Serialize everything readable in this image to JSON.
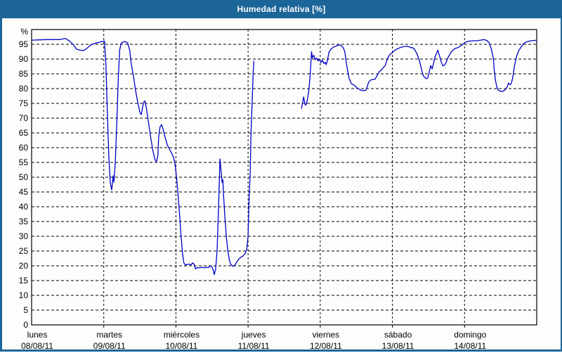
{
  "window": {
    "title": "Humedad relativa [%]",
    "title_bar_color": "#1c6598",
    "border_color": "#1c6598",
    "background_color": "#fdfefb"
  },
  "chart_data": {
    "type": "line",
    "title": "Humedad relativa [%]",
    "xlabel": "",
    "ylabel": "%",
    "xlim_days": [
      0,
      7
    ],
    "ylim": [
      0,
      100
    ],
    "grid": "dashed-horizontal-and-vertical",
    "legend_position": "none",
    "line_color": "#0000c8",
    "grid_color": "#000000",
    "yticks": [
      0,
      5,
      10,
      15,
      20,
      25,
      30,
      35,
      40,
      45,
      50,
      55,
      60,
      65,
      70,
      75,
      80,
      85,
      90,
      95
    ],
    "x_day_labels": [
      {
        "day": "lunes",
        "date": "08/08/11"
      },
      {
        "day": "martes",
        "date": "09/08/11"
      },
      {
        "day": "miércoles",
        "date": "10/08/11"
      },
      {
        "day": "jueves",
        "date": "11/08/11"
      },
      {
        "day": "viernes",
        "date": "12/08/11"
      },
      {
        "day": "sábado",
        "date": "13/08/11"
      },
      {
        "day": "domingo",
        "date": "14/08/11"
      }
    ],
    "series": [
      {
        "name": "Humedad relativa",
        "unit": "%",
        "segments": [
          [
            [
              0.0,
              96.4
            ],
            [
              0.1,
              96.5
            ],
            [
              0.2,
              96.6
            ],
            [
              0.29,
              96.6
            ],
            [
              0.39,
              96.6
            ],
            [
              0.47,
              97.0
            ],
            [
              0.53,
              96.0
            ],
            [
              0.58,
              94.8
            ],
            [
              0.62,
              93.4
            ],
            [
              0.67,
              93.0
            ],
            [
              0.72,
              92.9
            ],
            [
              0.76,
              93.5
            ],
            [
              0.81,
              94.6
            ],
            [
              0.86,
              95.2
            ],
            [
              0.92,
              95.6
            ],
            [
              0.97,
              95.9
            ],
            [
              1.01,
              96.1
            ],
            [
              1.03,
              88.0
            ],
            [
              1.05,
              72.0
            ],
            [
              1.07,
              57.0
            ],
            [
              1.09,
              48.0
            ],
            [
              1.11,
              45.7
            ],
            [
              1.13,
              50.5
            ],
            [
              1.14,
              48.3
            ],
            [
              1.16,
              55.0
            ],
            [
              1.18,
              68.0
            ],
            [
              1.2,
              83.0
            ],
            [
              1.22,
              93.0
            ],
            [
              1.24,
              95.3
            ],
            [
              1.27,
              95.8
            ],
            [
              1.3,
              95.9
            ],
            [
              1.33,
              95.5
            ],
            [
              1.36,
              93.0
            ],
            [
              1.38,
              88.5
            ],
            [
              1.41,
              84.5
            ],
            [
              1.44,
              79.5
            ],
            [
              1.47,
              75.5
            ],
            [
              1.5,
              72.0
            ],
            [
              1.52,
              71.2
            ],
            [
              1.53,
              72.5
            ],
            [
              1.55,
              75.3
            ],
            [
              1.57,
              75.8
            ],
            [
              1.59,
              73.5
            ],
            [
              1.62,
              68.5
            ],
            [
              1.65,
              63.5
            ],
            [
              1.68,
              59.0
            ],
            [
              1.71,
              56.0
            ],
            [
              1.73,
              55.2
            ],
            [
              1.75,
              57.5
            ],
            [
              1.76,
              63.5
            ],
            [
              1.78,
              67.0
            ],
            [
              1.8,
              67.8
            ],
            [
              1.82,
              66.5
            ],
            [
              1.85,
              63.5
            ],
            [
              1.88,
              61.0
            ],
            [
              1.91,
              59.5
            ],
            [
              1.94,
              58.2
            ],
            [
              1.97,
              56.5
            ],
            [
              1.99,
              54.0
            ],
            [
              2.01,
              49.5
            ],
            [
              2.03,
              44.0
            ],
            [
              2.05,
              37.5
            ],
            [
              2.07,
              30.5
            ],
            [
              2.09,
              24.5
            ],
            [
              2.11,
              21.0
            ],
            [
              2.13,
              20.3
            ],
            [
              2.15,
              20.4
            ],
            [
              2.18,
              20.6
            ],
            [
              2.21,
              20.3
            ],
            [
              2.23,
              21.0
            ],
            [
              2.25,
              20.6
            ],
            [
              2.27,
              19.0
            ],
            [
              2.3,
              19.4
            ],
            [
              2.33,
              19.3
            ],
            [
              2.36,
              19.5
            ],
            [
              2.39,
              19.3
            ],
            [
              2.42,
              19.5
            ],
            [
              2.45,
              19.4
            ],
            [
              2.48,
              20.0
            ],
            [
              2.5,
              19.6
            ],
            [
              2.52,
              18.4
            ],
            [
              2.53,
              17.0
            ],
            [
              2.55,
              18.8
            ],
            [
              2.57,
              25.0
            ],
            [
              2.59,
              39.0
            ],
            [
              2.61,
              56.2
            ],
            [
              2.63,
              51.0
            ],
            [
              2.64,
              48.2
            ],
            [
              2.65,
              49.2
            ],
            [
              2.66,
              44.0
            ],
            [
              2.68,
              36.0
            ],
            [
              2.7,
              29.5
            ],
            [
              2.72,
              25.0
            ],
            [
              2.74,
              22.0
            ],
            [
              2.76,
              20.5
            ],
            [
              2.79,
              19.8
            ],
            [
              2.82,
              20.3
            ],
            [
              2.85,
              21.6
            ],
            [
              2.88,
              22.5
            ],
            [
              2.9,
              22.9
            ],
            [
              2.93,
              23.3
            ],
            [
              2.96,
              24.2
            ],
            [
              2.98,
              25.5
            ],
            [
              3.0,
              30.0
            ],
            [
              3.01,
              40.0
            ],
            [
              3.03,
              52.0
            ],
            [
              3.04,
              65.0
            ],
            [
              3.06,
              78.0
            ],
            [
              3.07,
              85.0
            ],
            [
              3.08,
              89.3
            ]
          ],
          [
            [
              3.74,
              73.3
            ],
            [
              3.76,
              75.8
            ],
            [
              3.77,
              77.2
            ],
            [
              3.79,
              74.6
            ],
            [
              3.8,
              74.4
            ],
            [
              3.82,
              76.0
            ],
            [
              3.84,
              79.0
            ],
            [
              3.86,
              84.5
            ],
            [
              3.88,
              92.5
            ],
            [
              3.89,
              90.4
            ],
            [
              3.91,
              91.3
            ],
            [
              3.93,
              89.8
            ],
            [
              3.95,
              90.3
            ],
            [
              3.97,
              89.4
            ],
            [
              3.99,
              89.9
            ],
            [
              4.01,
              88.8
            ],
            [
              4.03,
              89.6
            ],
            [
              4.05,
              88.5
            ],
            [
              4.07,
              88.9
            ],
            [
              4.08,
              88.1
            ],
            [
              4.1,
              89.4
            ],
            [
              4.12,
              92.3
            ],
            [
              4.15,
              93.4
            ],
            [
              4.18,
              94.0
            ],
            [
              4.22,
              94.4
            ],
            [
              4.26,
              94.8
            ],
            [
              4.29,
              94.6
            ],
            [
              4.32,
              93.8
            ],
            [
              4.34,
              92.5
            ],
            [
              4.36,
              89.0
            ],
            [
              4.38,
              86.0
            ],
            [
              4.4,
              83.5
            ],
            [
              4.43,
              81.7
            ],
            [
              4.46,
              81.3
            ],
            [
              4.48,
              81.0
            ],
            [
              4.51,
              80.2
            ],
            [
              4.54,
              79.8
            ],
            [
              4.57,
              79.4
            ],
            [
              4.6,
              79.3
            ],
            [
              4.63,
              79.4
            ],
            [
              4.65,
              80.5
            ],
            [
              4.67,
              82.2
            ],
            [
              4.7,
              82.9
            ],
            [
              4.73,
              83.1
            ],
            [
              4.76,
              83.2
            ],
            [
              4.79,
              84.5
            ],
            [
              4.82,
              85.8
            ],
            [
              4.85,
              86.3
            ],
            [
              4.87,
              87.0
            ],
            [
              4.9,
              87.8
            ],
            [
              4.92,
              89.3
            ],
            [
              4.94,
              90.6
            ],
            [
              4.97,
              91.7
            ],
            [
              5.0,
              92.2
            ],
            [
              5.03,
              92.9
            ],
            [
              5.07,
              93.5
            ],
            [
              5.11,
              93.9
            ],
            [
              5.15,
              94.2
            ],
            [
              5.19,
              94.3
            ],
            [
              5.23,
              94.2
            ],
            [
              5.26,
              93.8
            ],
            [
              5.28,
              93.9
            ],
            [
              5.31,
              93.2
            ],
            [
              5.34,
              91.8
            ],
            [
              5.37,
              89.8
            ],
            [
              5.39,
              88.0
            ],
            [
              5.41,
              85.8
            ],
            [
              5.43,
              84.3
            ],
            [
              5.45,
              83.8
            ],
            [
              5.47,
              83.3
            ],
            [
              5.49,
              83.6
            ],
            [
              5.51,
              85.5
            ],
            [
              5.53,
              87.8
            ],
            [
              5.55,
              86.7
            ],
            [
              5.57,
              88.5
            ],
            [
              5.59,
              90.7
            ],
            [
              5.61,
              91.8
            ],
            [
              5.63,
              93.0
            ],
            [
              5.64,
              92.2
            ],
            [
              5.66,
              90.5
            ],
            [
              5.68,
              88.8
            ],
            [
              5.7,
              87.7
            ],
            [
              5.72,
              87.9
            ],
            [
              5.74,
              88.6
            ],
            [
              5.77,
              90.5
            ],
            [
              5.8,
              91.8
            ],
            [
              5.83,
              92.8
            ],
            [
              5.87,
              93.6
            ],
            [
              5.91,
              93.9
            ],
            [
              5.95,
              94.5
            ],
            [
              5.99,
              95.3
            ],
            [
              6.02,
              95.8
            ],
            [
              6.07,
              96.1
            ],
            [
              6.12,
              96.2
            ],
            [
              6.17,
              96.2
            ],
            [
              6.22,
              96.4
            ],
            [
              6.27,
              96.6
            ],
            [
              6.31,
              96.3
            ],
            [
              6.34,
              95.5
            ],
            [
              6.37,
              93.5
            ],
            [
              6.4,
              90.0
            ],
            [
              6.41,
              86.5
            ],
            [
              6.43,
              82.5
            ],
            [
              6.45,
              80.3
            ],
            [
              6.47,
              79.4
            ],
            [
              6.5,
              79.1
            ],
            [
              6.53,
              79.1
            ],
            [
              6.56,
              79.5
            ],
            [
              6.59,
              80.5
            ],
            [
              6.61,
              81.9
            ],
            [
              6.63,
              81.3
            ],
            [
              6.65,
              81.8
            ],
            [
              6.67,
              84.0
            ],
            [
              6.69,
              87.5
            ],
            [
              6.72,
              90.8
            ],
            [
              6.75,
              92.8
            ],
            [
              6.79,
              94.3
            ],
            [
              6.82,
              95.3
            ],
            [
              6.87,
              95.9
            ],
            [
              6.92,
              96.2
            ],
            [
              6.97,
              96.3
            ],
            [
              7.0,
              96.4
            ]
          ]
        ]
      }
    ]
  }
}
